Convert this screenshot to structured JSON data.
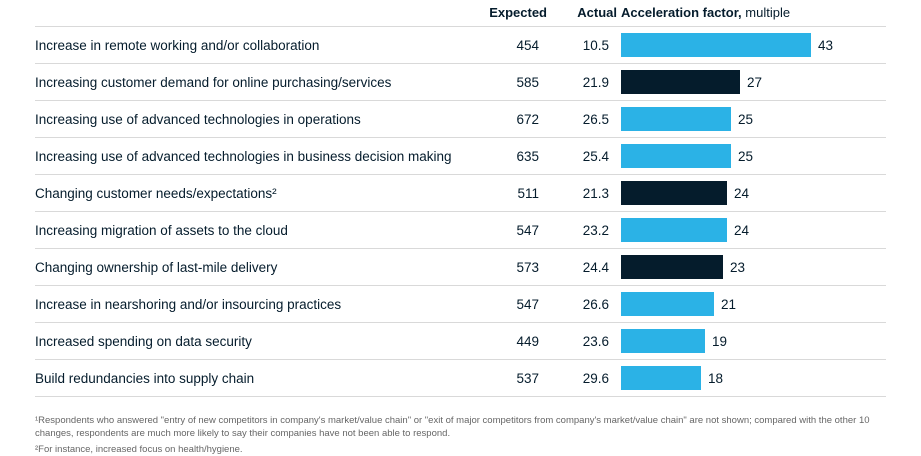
{
  "colors": {
    "cyan": "#2bb2e6",
    "navy": "#051c2c",
    "divider": "#d9d9d9",
    "footnote": "#666666"
  },
  "header": {
    "expected": "Expected",
    "actual": "Actual",
    "accel_bold": "Acceleration factor,",
    "accel_light": " multiple"
  },
  "rows": [
    {
      "label": "Increase in remote working and/or collaboration",
      "expected": "454",
      "actual": "10.5",
      "factor": 43,
      "color": "cyan"
    },
    {
      "label": "Increasing customer demand for online purchasing/services",
      "expected": "585",
      "actual": "21.9",
      "factor": 27,
      "color": "navy"
    },
    {
      "label": "Increasing use of advanced technologies in operations",
      "expected": "672",
      "actual": "26.5",
      "factor": 25,
      "color": "cyan"
    },
    {
      "label": "Increasing use of advanced technologies in business decision making",
      "expected": "635",
      "actual": "25.4",
      "factor": 25,
      "color": "cyan"
    },
    {
      "label": "Changing customer needs/expectations²",
      "expected": "511",
      "actual": "21.3",
      "factor": 24,
      "color": "navy"
    },
    {
      "label": "Increasing migration of assets to the cloud",
      "expected": "547",
      "actual": "23.2",
      "factor": 24,
      "color": "cyan"
    },
    {
      "label": "Changing ownership of last-mile delivery",
      "expected": "573",
      "actual": "24.4",
      "factor": 23,
      "color": "navy"
    },
    {
      "label": "Increase in nearshoring and/or insourcing practices",
      "expected": "547",
      "actual": "26.6",
      "factor": 21,
      "color": "cyan"
    },
    {
      "label": "Increased spending on data security",
      "expected": "449",
      "actual": "23.6",
      "factor": 19,
      "color": "cyan"
    },
    {
      "label": "Build redundancies into supply chain",
      "expected": "537",
      "actual": "29.6",
      "factor": 18,
      "color": "cyan"
    }
  ],
  "footnotes": [
    "¹Respondents who answered \"entry of new competitors in company's market/value chain\" or \"exit of major competitors from company's market/value chain\" are not shown; compared with the other 10 changes, respondents are much more likely to say their companies have not been able to respond.",
    "²For instance, increased focus on health/hygiene."
  ],
  "chart_data": {
    "type": "bar",
    "orientation": "horizontal",
    "title": "Acceleration factor, multiple",
    "categories": [
      "Increase in remote working and/or collaboration",
      "Increasing customer demand for online purchasing/services",
      "Increasing use of advanced technologies in operations",
      "Increasing use of advanced technologies in business decision making",
      "Changing customer needs/expectations²",
      "Increasing migration of assets to the cloud",
      "Changing ownership of last-mile delivery",
      "Increase in nearshoring and/or insourcing practices",
      "Increased spending on data security",
      "Build redundancies into supply chain"
    ],
    "series": [
      {
        "name": "Expected",
        "values": [
          454,
          585,
          672,
          635,
          511,
          547,
          573,
          547,
          449,
          537
        ]
      },
      {
        "name": "Actual",
        "values": [
          10.5,
          21.9,
          26.5,
          25.4,
          21.3,
          23.2,
          24.4,
          26.6,
          23.6,
          29.6
        ]
      },
      {
        "name": "Acceleration factor, multiple",
        "values": [
          43,
          27,
          25,
          25,
          24,
          24,
          23,
          21,
          19,
          18
        ]
      }
    ],
    "bar_colors": [
      "#2bb2e6",
      "#051c2c",
      "#2bb2e6",
      "#2bb2e6",
      "#051c2c",
      "#2bb2e6",
      "#051c2c",
      "#2bb2e6",
      "#2bb2e6",
      "#2bb2e6"
    ],
    "xlim": [
      0,
      43
    ],
    "grid": false,
    "legend": false
  }
}
